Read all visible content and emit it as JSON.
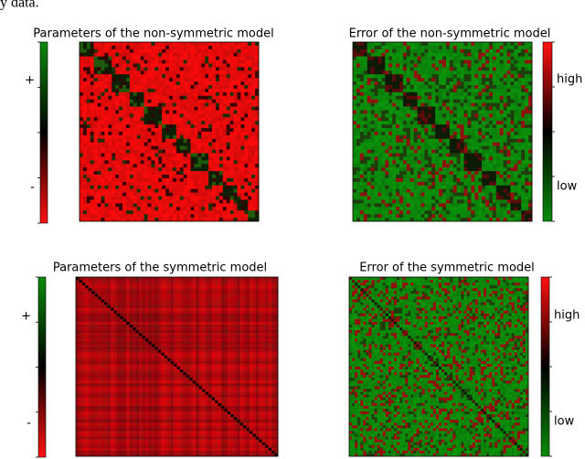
{
  "caption_fragment": "y data.",
  "panels": [
    {
      "title": "Parameters of the non-symmetric model",
      "colorbar_labels": [
        "+",
        "-"
      ]
    },
    {
      "title": "Error of the non-symmetric model",
      "colorbar_labels": [
        "high",
        "low"
      ]
    },
    {
      "title": "Parameters of the symmetric model",
      "colorbar_labels": [
        "+",
        "-"
      ]
    },
    {
      "title": "Error of the symmetric model",
      "colorbar_labels": [
        "high",
        "low"
      ]
    }
  ]
}
